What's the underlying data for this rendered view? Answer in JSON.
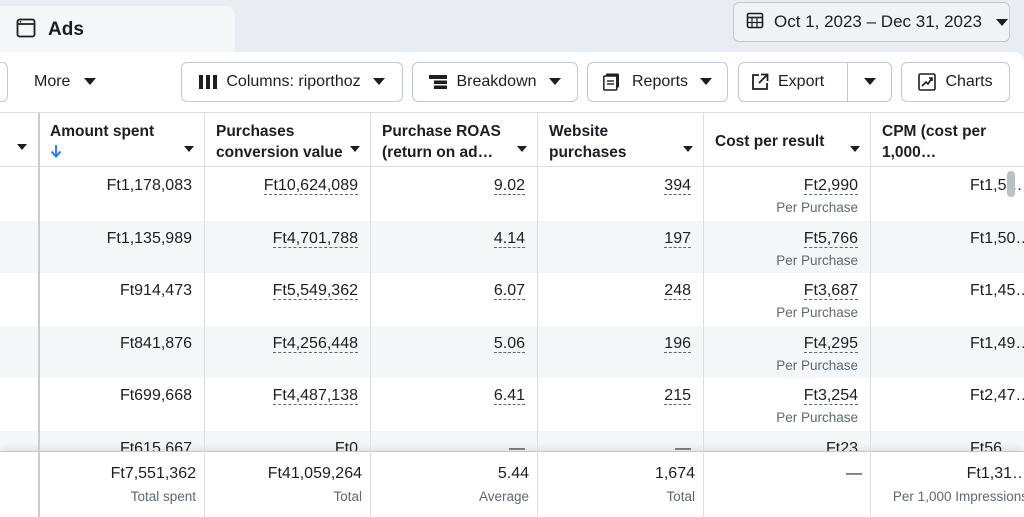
{
  "tab": {
    "title": "Ads",
    "icon": "window-icon"
  },
  "date_range": {
    "label": "Oct 1, 2023 – Dec 31, 2023",
    "icon": "calendar-icon"
  },
  "toolbar": {
    "more_label": "More",
    "columns_label": "Columns: riporthoz",
    "breakdown_label": "Breakdown",
    "reports_label": "Reports",
    "export_label": "Export",
    "charts_label": "Charts"
  },
  "columns": [
    {
      "key": "amount_spent",
      "label": "Amount spent",
      "sorted": "descending"
    },
    {
      "key": "purchases_value",
      "label": "Purchases conversion value"
    },
    {
      "key": "purchase_roas",
      "label": "Purchase ROAS (return on ad…"
    },
    {
      "key": "website_purchases",
      "label": "Website purchases"
    },
    {
      "key": "cost_per_result",
      "label": "Cost per result"
    },
    {
      "key": "cpm",
      "label": "CPM (cost per 1,000…"
    }
  ],
  "rows": [
    {
      "amount_spent": "Ft1,178,083",
      "purchases_value": "Ft10,624,089",
      "purchase_roas": "9.02",
      "website_purchases": "394",
      "cost_per_result": "Ft2,990",
      "cost_per_result_sub": "Per Purchase",
      "cpm": "Ft1,5…"
    },
    {
      "amount_spent": "Ft1,135,989",
      "purchases_value": "Ft4,701,788",
      "purchase_roas": "4.14",
      "website_purchases": "197",
      "cost_per_result": "Ft5,766",
      "cost_per_result_sub": "Per Purchase",
      "cpm": "Ft1,50…"
    },
    {
      "amount_spent": "Ft914,473",
      "purchases_value": "Ft5,549,362",
      "purchase_roas": "6.07",
      "website_purchases": "248",
      "cost_per_result": "Ft3,687",
      "cost_per_result_sub": "Per Purchase",
      "cpm": "Ft1,45…"
    },
    {
      "amount_spent": "Ft841,876",
      "purchases_value": "Ft4,256,448",
      "purchase_roas": "5.06",
      "website_purchases": "196",
      "cost_per_result": "Ft4,295",
      "cost_per_result_sub": "Per Purchase",
      "cpm": "Ft1,49…"
    },
    {
      "amount_spent": "Ft699,668",
      "purchases_value": "Ft4,487,138",
      "purchase_roas": "6.41",
      "website_purchases": "215",
      "cost_per_result": "Ft3,254",
      "cost_per_result_sub": "Per Purchase",
      "cpm": "Ft2,47…"
    },
    {
      "amount_spent": "Ft615,667",
      "purchases_value": "Ft0",
      "purchase_roas": "—",
      "website_purchases": "—",
      "cost_per_result": "Ft23",
      "cost_per_result_sub": "",
      "cpm": "Ft56…"
    }
  ],
  "totals": {
    "amount_spent": "Ft7,551,362",
    "amount_spent_sub": "Total spent",
    "purchases_value": "Ft41,059,264",
    "purchases_value_sub": "Total",
    "purchase_roas": "5.44",
    "purchase_roas_sub": "Average",
    "website_purchases": "1,674",
    "website_purchases_sub": "Total",
    "cost_per_result": "—",
    "cost_per_result_sub": "",
    "cpm": "Ft1,31…",
    "cpm_sub": "Per 1,000 Impressions"
  },
  "colors": {
    "accent": "#1877f2",
    "text": "#1c1e21",
    "muted": "#606770",
    "border": "#dadde1",
    "alt_row": "#f5f6f7"
  }
}
